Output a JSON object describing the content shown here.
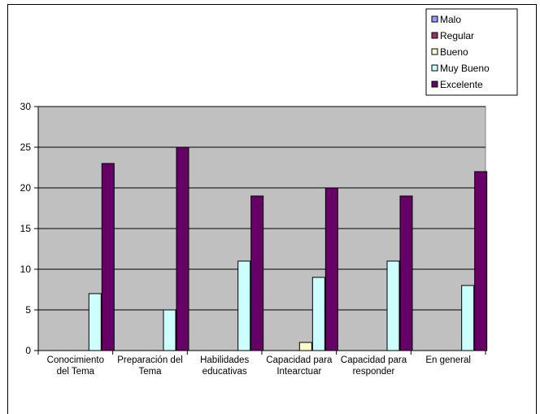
{
  "chart_data": {
    "type": "bar",
    "categories": [
      [
        "Conocimiento",
        "del Tema"
      ],
      [
        "Preparación del",
        "Tema"
      ],
      [
        "Habilidades",
        "educativas"
      ],
      [
        "Capacidad para",
        "Intearctuar"
      ],
      [
        "Capacidad para",
        "responder"
      ],
      [
        "En general"
      ]
    ],
    "series": [
      {
        "name": "Malo",
        "color": "#9999ff",
        "values": [
          0,
          0,
          0,
          0,
          0,
          0
        ]
      },
      {
        "name": "Regular",
        "color": "#993366",
        "values": [
          0,
          0,
          0,
          0,
          0,
          0
        ]
      },
      {
        "name": "Bueno",
        "color": "#ffffcc",
        "values": [
          0,
          0,
          0,
          1,
          0,
          0
        ]
      },
      {
        "name": "Muy Bueno",
        "color": "#ccffff",
        "values": [
          7,
          5,
          11,
          9,
          11,
          8
        ]
      },
      {
        "name": "Excelente",
        "color": "#660066",
        "values": [
          23,
          25,
          19,
          20,
          19,
          22
        ]
      }
    ],
    "ylim": [
      0,
      30
    ],
    "yticks": [
      0,
      5,
      10,
      15,
      20,
      25,
      30
    ],
    "grid": true,
    "plot_background": "#c0c0c0",
    "legend_position": "top-right",
    "title": "",
    "xlabel": "",
    "ylabel": ""
  }
}
